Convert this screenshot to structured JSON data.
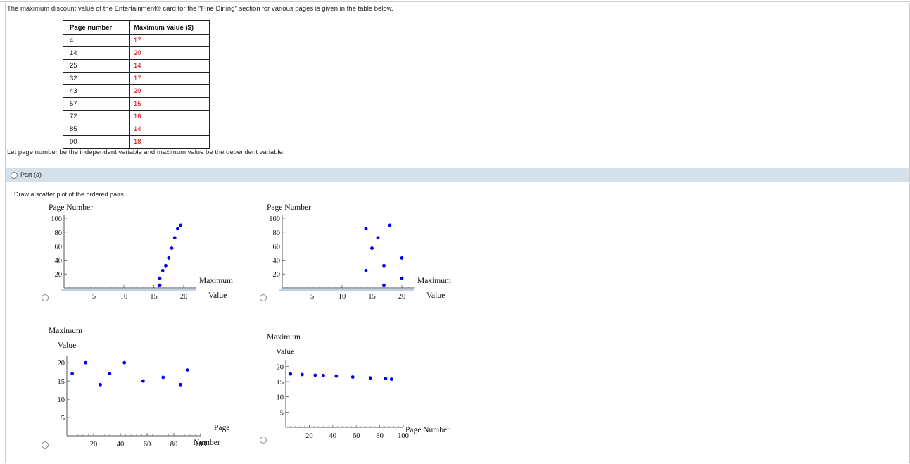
{
  "intro": "The maximum discount value of the Entertainment® card for the \"Fine Dining\" section for various pages is given in the table below.",
  "table": {
    "headers": [
      "Page number",
      "Maximum value ($)"
    ],
    "rows": [
      [
        "4",
        "17"
      ],
      [
        "14",
        "20"
      ],
      [
        "25",
        "14"
      ],
      [
        "32",
        "17"
      ],
      [
        "43",
        "20"
      ],
      [
        "57",
        "15"
      ],
      [
        "72",
        "16"
      ],
      [
        "85",
        "14"
      ],
      [
        "90",
        "18"
      ]
    ]
  },
  "let_line": "Let page number be the independent variable and maximum value be the dependent variable.",
  "part": {
    "label": "Part (a)",
    "toggle_icon": "minus-circle-icon"
  },
  "instruction": "Draw a scatter plot of the ordered pairs.",
  "point_color": "#0000ee",
  "accent_colors": {
    "part_bar": "#d4e0ea",
    "table_values": "#d00000"
  },
  "chart_data": [
    {
      "type": "scatter",
      "ylabel": "Page Number",
      "xlabel_lines": [
        "Maximum",
        "Value"
      ],
      "xlim": [
        0,
        22
      ],
      "ylim": [
        0,
        100
      ],
      "xticks": [
        "5",
        "10",
        "15",
        "20"
      ],
      "yticks": [
        "20",
        "40",
        "60",
        "80",
        "100"
      ],
      "points": [
        [
          16,
          4
        ],
        [
          16,
          14
        ],
        [
          16.5,
          25
        ],
        [
          17,
          32
        ],
        [
          17.5,
          43
        ],
        [
          18,
          57
        ],
        [
          18.5,
          72
        ],
        [
          19,
          85
        ],
        [
          19.5,
          90
        ]
      ]
    },
    {
      "type": "scatter",
      "ylabel": "Page Number",
      "xlabel_lines": [
        "Maximum",
        "Value"
      ],
      "xlim": [
        0,
        22
      ],
      "ylim": [
        0,
        100
      ],
      "xticks": [
        "5",
        "10",
        "15",
        "20"
      ],
      "yticks": [
        "20",
        "40",
        "60",
        "80",
        "100"
      ],
      "points": [
        [
          17,
          4
        ],
        [
          20,
          14
        ],
        [
          14,
          25
        ],
        [
          17,
          32
        ],
        [
          20,
          43
        ],
        [
          15,
          57
        ],
        [
          16,
          72
        ],
        [
          14,
          85
        ],
        [
          18,
          90
        ]
      ]
    },
    {
      "type": "scatter",
      "ylabel_lines": [
        "Maximum",
        "Value"
      ],
      "xlabel_lines": [
        "Page",
        "Number"
      ],
      "xlim": [
        0,
        100
      ],
      "ylim": [
        0,
        21
      ],
      "xticks": [
        "20",
        "40",
        "60",
        "80",
        "100"
      ],
      "yticks": [
        "5",
        "10",
        "15",
        "20"
      ],
      "points": [
        [
          4,
          17
        ],
        [
          14,
          20
        ],
        [
          25,
          14
        ],
        [
          32,
          17
        ],
        [
          43,
          20
        ],
        [
          57,
          15
        ],
        [
          72,
          16
        ],
        [
          85,
          14
        ],
        [
          90,
          18
        ]
      ]
    },
    {
      "type": "scatter",
      "ylabel_lines": [
        "Maximum",
        "Value"
      ],
      "xlabel_lines": [
        "Page Number"
      ],
      "xlim": [
        0,
        100
      ],
      "ylim": [
        0,
        21
      ],
      "xticks": [
        "20",
        "40",
        "60",
        "80",
        "100"
      ],
      "yticks": [
        "5",
        "10",
        "15",
        "20"
      ],
      "points": [
        [
          4,
          17.5
        ],
        [
          14,
          17.3
        ],
        [
          25,
          17.1
        ],
        [
          32,
          17
        ],
        [
          43,
          16.8
        ],
        [
          57,
          16.5
        ],
        [
          72,
          16.2
        ],
        [
          85,
          16
        ],
        [
          90,
          15.8
        ]
      ]
    }
  ]
}
